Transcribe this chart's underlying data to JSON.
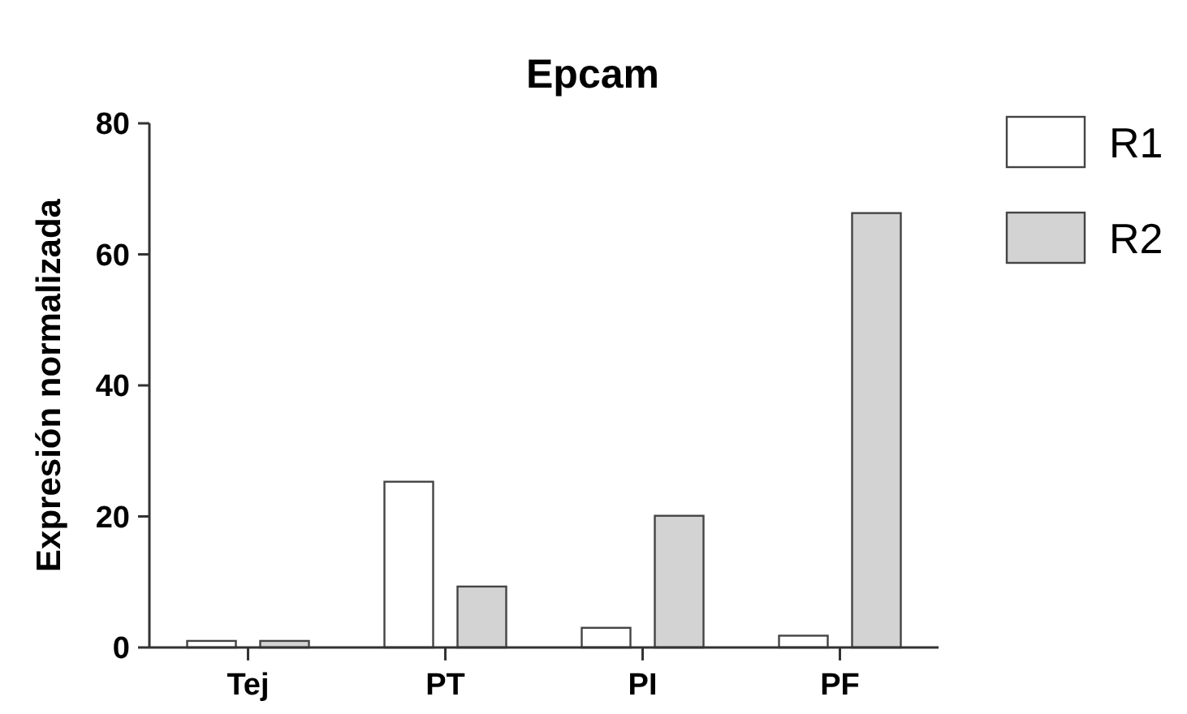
{
  "chart_data": {
    "type": "bar",
    "title": "Epcam",
    "ylabel": "Expresión normalizada",
    "categories": [
      "Tej",
      "PT",
      "PI",
      "PF"
    ],
    "series": [
      {
        "name": "R1",
        "color": "#ffffff",
        "values": [
          1.0,
          25.3,
          3.0,
          1.8
        ]
      },
      {
        "name": "R2",
        "color": "#d3d3d3",
        "values": [
          1.0,
          9.3,
          20.1,
          66.3
        ]
      }
    ],
    "ylim": [
      0,
      80
    ],
    "yticks": [
      0,
      20,
      40,
      60,
      80
    ],
    "grid": false,
    "legend": "right"
  }
}
